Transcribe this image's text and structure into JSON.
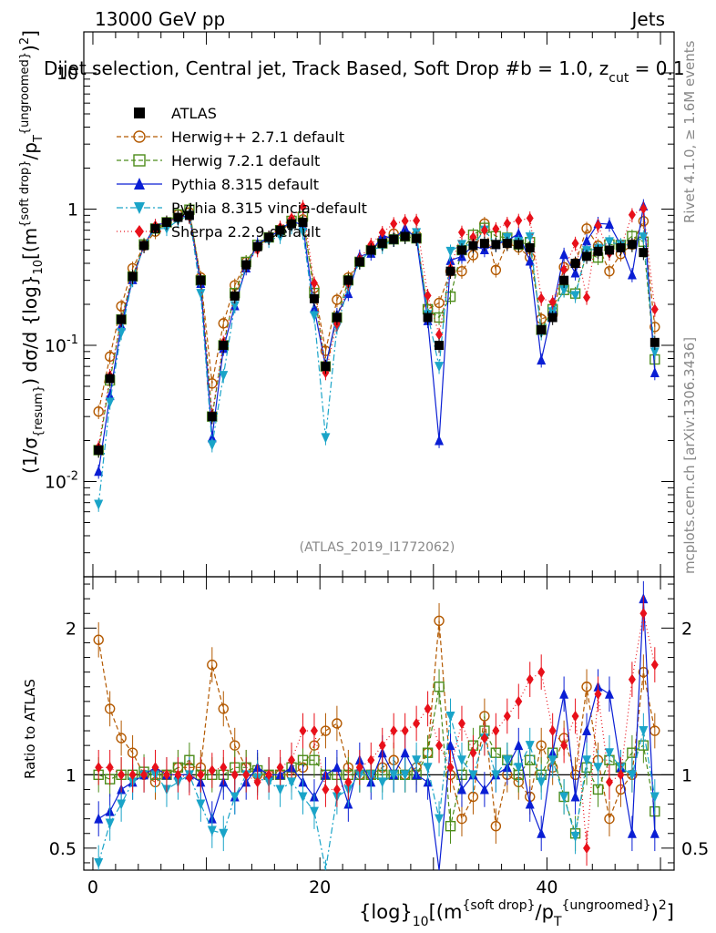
{
  "header": {
    "energy_label": "13000 GeV pp",
    "category_label": "Jets",
    "plot_title": "Dijet selection, Central jet, Track Based, Soft Drop #b = 1.0, z",
    "plot_title_cut": "cut",
    "plot_title_suffix": " = 0.1"
  },
  "side_labels": {
    "rivet": "Rivet 4.1.0, ≥ 1.6M events",
    "mcplots": "mcplots.cern.ch [arXiv:1306.3436]"
  },
  "watermark": "(ATLAS_2019_I1772062)",
  "axes": {
    "y_top_label": "(1/σ{resum}) dσ/d {log}10[(m{soft drop}/pT{ungroomed})2]",
    "y_bottom_label": "Ratio to ATLAS",
    "x_label": "{log}10[(m{soft drop}/pT{ungroomed})2]"
  },
  "chart_data": {
    "type": "scatter",
    "x_ticks": [
      "0",
      "20",
      "40"
    ],
    "x_range": [
      -0.8,
      51.2
    ],
    "y_top_log_range": [
      0.002,
      20
    ],
    "y_top_tick_labels": [
      "10^{-2}",
      "10^{-1}",
      "1",
      "10"
    ],
    "y_ratio_range": [
      0.35,
      2.35
    ],
    "y_ratio_ticks": [
      "0.5",
      "1",
      "2"
    ],
    "x": [
      0.5,
      1.5,
      2.5,
      3.5,
      4.5,
      5.5,
      6.5,
      7.5,
      8.5,
      9.5,
      10.5,
      11.5,
      12.5,
      13.5,
      14.5,
      15.5,
      16.5,
      17.5,
      18.5,
      19.5,
      20.5,
      21.5,
      22.5,
      23.5,
      24.5,
      25.5,
      26.5,
      27.5,
      28.5,
      29.5,
      30.5,
      31.5,
      32.5,
      33.5,
      34.5,
      35.5,
      36.5,
      37.5,
      38.5,
      39.5,
      40.5,
      41.5,
      42.5,
      43.5,
      44.5,
      45.5,
      46.5,
      47.5,
      48.5,
      49.5
    ],
    "atlas": [
      0.017,
      0.057,
      0.155,
      0.32,
      0.54,
      0.72,
      0.8,
      0.87,
      0.9,
      0.3,
      0.03,
      0.1,
      0.23,
      0.39,
      0.53,
      0.62,
      0.7,
      0.78,
      0.8,
      0.22,
      0.07,
      0.16,
      0.3,
      0.41,
      0.5,
      0.56,
      0.6,
      0.63,
      0.61,
      0.16,
      0.1,
      0.35,
      0.5,
      0.54,
      0.56,
      0.55,
      0.56,
      0.55,
      0.52,
      0.13,
      0.16,
      0.3,
      0.4,
      0.45,
      0.49,
      0.5,
      0.52,
      0.55,
      0.48,
      0.105
    ],
    "legend_position": "top-left",
    "series": [
      {
        "name": "ATLAS",
        "color": "#000000",
        "marker": "square-filled",
        "dash": "none",
        "ratio": [
          1,
          1,
          1,
          1,
          1,
          1,
          1,
          1,
          1,
          1,
          1,
          1,
          1,
          1,
          1,
          1,
          1,
          1,
          1,
          1,
          1,
          1,
          1,
          1,
          1,
          1,
          1,
          1,
          1,
          1,
          1,
          1,
          1,
          1,
          1,
          1,
          1,
          1,
          1,
          1,
          1,
          1,
          1,
          1,
          1,
          1,
          1,
          1,
          1,
          1
        ]
      },
      {
        "name": "Herwig++ 2.7.1 default",
        "color": "#b35900",
        "marker": "circle-open",
        "dash": "5,3",
        "ratio": [
          1.92,
          1.45,
          1.25,
          1.15,
          1.0,
          0.95,
          1.0,
          1.05,
          1.05,
          1.05,
          1.75,
          1.45,
          1.2,
          1.05,
          1.0,
          1.0,
          1.0,
          1.0,
          1.05,
          1.2,
          1.3,
          1.35,
          1.05,
          1.0,
          1.0,
          1.05,
          1.1,
          1.0,
          1.05,
          1.15,
          2.05,
          1.0,
          0.7,
          0.85,
          1.4,
          0.65,
          1.0,
          0.95,
          0.85,
          1.2,
          1.05,
          1.25,
          1.0,
          1.6,
          1.1,
          0.7,
          0.9,
          1.0,
          1.7,
          1.3
        ]
      },
      {
        "name": "Herwig 7.2.1 default",
        "color": "#4c8c1a",
        "marker": "square-open",
        "dash": "5,3",
        "ratio": [
          1.0,
          0.97,
          1.0,
          1.0,
          1.02,
          1.0,
          1.0,
          1.05,
          1.1,
          1.0,
          1.0,
          1.0,
          1.05,
          1.05,
          1.03,
          1.0,
          1.0,
          1.05,
          1.1,
          1.1,
          1.0,
          1.0,
          1.0,
          1.0,
          1.0,
          1.0,
          1.0,
          1.0,
          1.0,
          1.15,
          1.6,
          0.65,
          1.0,
          1.2,
          1.3,
          1.15,
          1.1,
          1.0,
          1.1,
          1.0,
          1.15,
          0.85,
          0.6,
          1.05,
          0.9,
          1.1,
          1.05,
          1.15,
          1.2,
          0.75
        ]
      },
      {
        "name": "Pythia 8.315 default",
        "color": "#0a1ed4",
        "marker": "triangle-up",
        "dash": "none",
        "ratio": [
          0.7,
          0.75,
          0.9,
          0.95,
          1.0,
          1.05,
          1.0,
          1.0,
          1.0,
          0.95,
          0.7,
          0.95,
          0.85,
          0.95,
          1.05,
          1.0,
          1.0,
          1.05,
          0.95,
          0.85,
          1.0,
          1.05,
          0.8,
          1.1,
          0.95,
          1.15,
          1.0,
          1.15,
          1.0,
          0.95,
          0.2,
          1.2,
          0.9,
          1.0,
          0.9,
          1.0,
          1.05,
          1.2,
          0.8,
          0.6,
          1.15,
          1.55,
          0.85,
          1.3,
          1.6,
          1.55,
          1.05,
          0.6,
          2.2,
          0.6
        ]
      },
      {
        "name": "Pythia 8.315 vincia-default",
        "color": "#1aa4c8",
        "marker": "triangle-down",
        "dash": "7,3,2,3",
        "ratio": [
          0.4,
          0.67,
          0.8,
          0.95,
          1.0,
          1.0,
          0.9,
          0.95,
          1.0,
          0.8,
          0.62,
          0.6,
          0.85,
          1.0,
          0.98,
          0.95,
          0.9,
          0.95,
          0.85,
          0.75,
          0.3,
          0.85,
          0.9,
          1.0,
          1.0,
          0.95,
          1.0,
          1.0,
          1.1,
          1.05,
          0.7,
          1.4,
          1.1,
          1.0,
          1.25,
          1.0,
          1.1,
          1.05,
          1.2,
          0.95,
          1.1,
          0.85,
          0.58,
          1.1,
          1.05,
          1.15,
          1.05,
          1.0,
          1.3,
          0.85
        ]
      },
      {
        "name": "Sherpa 2.2.9 default",
        "color": "#e8101a",
        "marker": "diamond-filled",
        "dash": "1,3",
        "ratio": [
          1.05,
          1.05,
          1.0,
          1.0,
          1.0,
          1.05,
          1.0,
          1.0,
          0.98,
          1.0,
          1.03,
          1.05,
          1.0,
          1.0,
          0.95,
          1.0,
          1.05,
          1.1,
          1.3,
          1.3,
          0.9,
          0.9,
          0.95,
          1.05,
          1.1,
          1.2,
          1.3,
          1.3,
          1.35,
          1.45,
          1.2,
          1.05,
          1.35,
          1.15,
          1.25,
          1.3,
          1.4,
          1.5,
          1.65,
          1.7,
          1.3,
          1.2,
          1.4,
          0.5,
          1.55,
          0.95,
          1.0,
          1.65,
          2.1,
          1.75
        ]
      }
    ],
    "error_frac": 0.12
  }
}
